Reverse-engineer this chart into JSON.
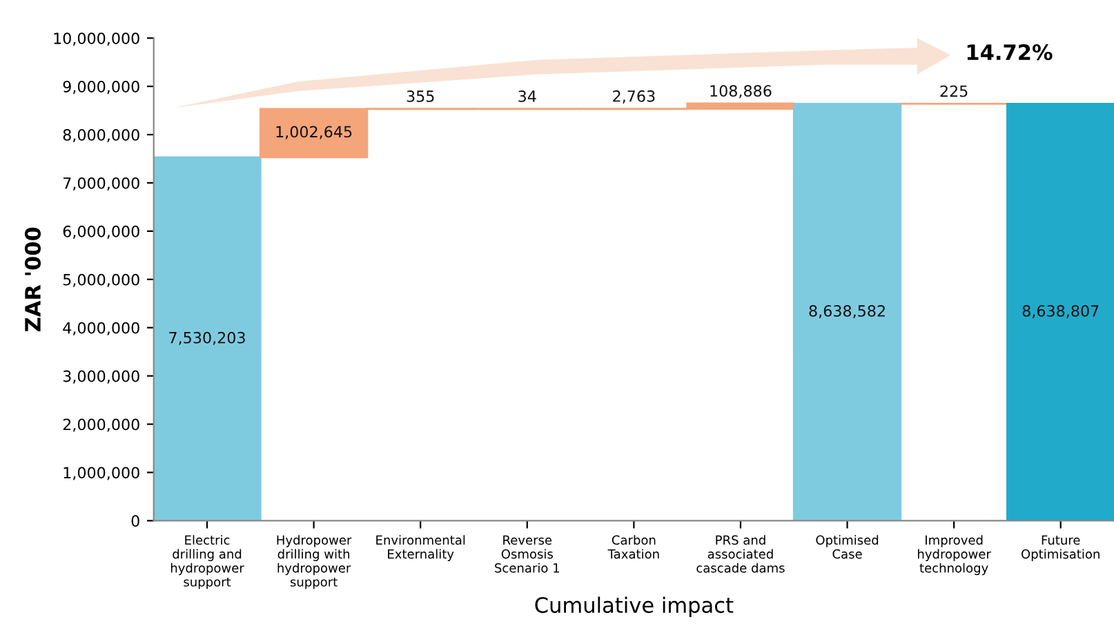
{
  "chart_data": {
    "type": "bar",
    "ylabel": "ZAR '000",
    "xlabel": "Cumulative impact",
    "categories": [
      "Electric drilling and hydropower support",
      "Hydropower drilling with hydropower support",
      "Environmental Externality",
      "Reverse Osmosis Scenario 1",
      "Carbon Taxation",
      "PRS and associated cascade dams",
      "Optimised Case",
      "Improved hydropower technology",
      "Future Optimisation"
    ],
    "values": [
      7530203,
      1002645,
      355,
      34,
      2763,
      108886,
      8638582,
      225,
      8638807
    ],
    "base": [
      0,
      7530203,
      8532848,
      8533203,
      8533237,
      8536000,
      0,
      8638582,
      0
    ],
    "colors": [
      "#7ecbe0",
      "#f4a57a",
      "#f4a57a",
      "#f4a57a",
      "#f4a57a",
      "#f4a57a",
      "#7ecbe0",
      "#f4a57a",
      "#22aacb"
    ],
    "value_labels": [
      "7,530,203",
      "1,002,645",
      "355",
      "34",
      "2,763",
      "108,886",
      "8,638,582",
      "225",
      "8,638,807"
    ],
    "ylim": [
      0,
      10000000
    ],
    "yticks": [
      {
        "value": 0,
        "label": "0"
      },
      {
        "value": 1000000,
        "label": "1,000,000"
      },
      {
        "value": 2000000,
        "label": "2,000,000"
      },
      {
        "value": 3000000,
        "label": "3,000,000"
      },
      {
        "value": 4000000,
        "label": "4,000,000"
      },
      {
        "value": 5000000,
        "label": "5,000,000"
      },
      {
        "value": 6000000,
        "label": "6,000,000"
      },
      {
        "value": 7000000,
        "label": "7,000,000"
      },
      {
        "value": 8000000,
        "label": "8,000,000"
      },
      {
        "value": 9000000,
        "label": "9,000,000"
      },
      {
        "value": 10000000,
        "label": "10,000,000"
      }
    ],
    "annotations": [
      "14.72%"
    ],
    "grid": false,
    "legend": false
  }
}
